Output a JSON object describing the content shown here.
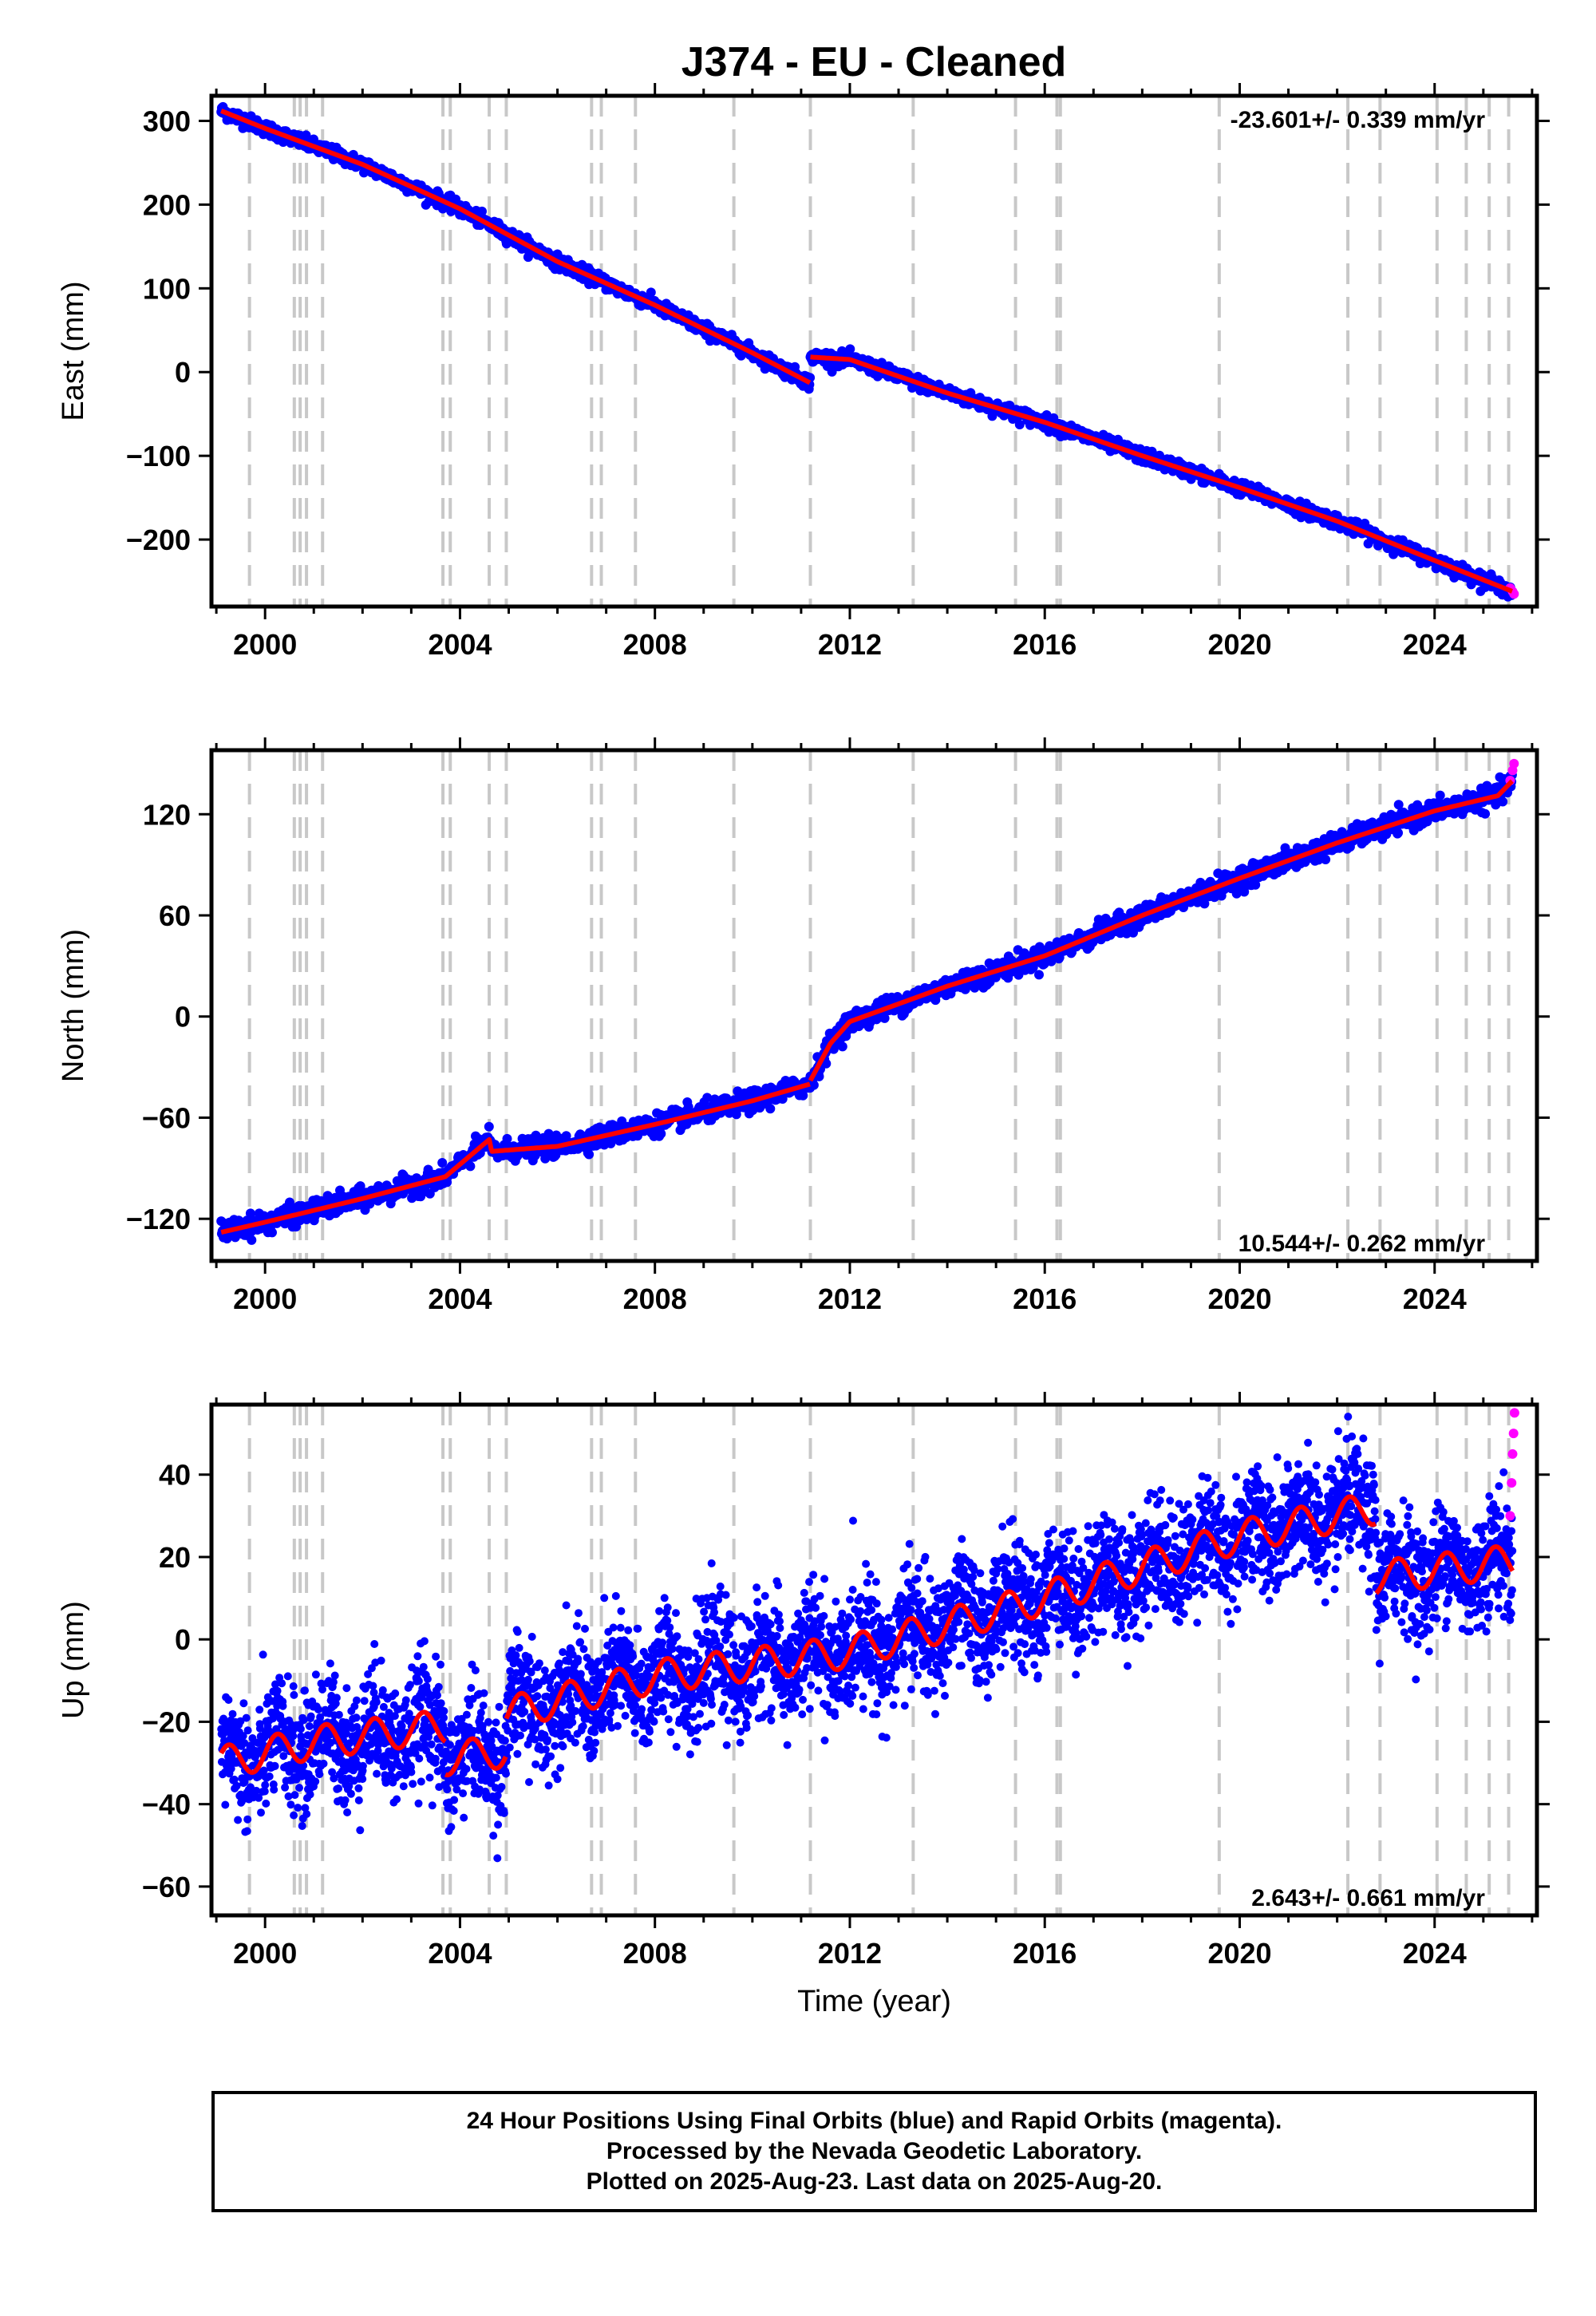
{
  "title": "J374  - EU - Cleaned",
  "chart_data": [
    {
      "type": "scatter",
      "component": "east",
      "ylabel": "East (mm)",
      "xlabel": "",
      "rate_label": "-23.601+/- 0.339 mm/yr",
      "xlim": [
        1998.9,
        2026.1
      ],
      "ylim": [
        -280,
        330
      ],
      "xticks": [
        2000,
        2004,
        2008,
        2012,
        2016,
        2020,
        2024
      ],
      "xtick_labels": [
        "2000",
        "2004",
        "2008",
        "2012",
        "2016",
        "2020",
        "2024"
      ],
      "yticks": [
        -200,
        -100,
        0,
        100,
        200,
        300
      ],
      "ytick_labels": [
        "−200",
        "−100",
        "0",
        "100",
        "200",
        "300"
      ],
      "model_segments": [
        {
          "x": [
            1999.1,
            2000.0,
            2002.0,
            2004.0,
            2006.0,
            2008.0,
            2010.0,
            2011.19
          ],
          "y": [
            312,
            291,
            248,
            195,
            132,
            80,
            23,
            -13
          ]
        },
        {
          "x": [
            2011.19,
            2012.0,
            2014.0,
            2016.0,
            2018.0,
            2020.0,
            2022.0,
            2024.0,
            2025.6
          ],
          "y": [
            18,
            15,
            -25,
            -60,
            -100,
            -138,
            -178,
            -225,
            -262
          ]
        }
      ],
      "scatter_noise_mm": 4,
      "rapid_points": {
        "x": [
          2025.55,
          2025.6,
          2025.63
        ],
        "y": [
          -258,
          -262,
          -265
        ]
      }
    },
    {
      "type": "scatter",
      "component": "north",
      "ylabel": "North (mm)",
      "xlabel": "",
      "rate_label": "10.544+/- 0.262 mm/yr",
      "xlim": [
        1998.9,
        2026.1
      ],
      "ylim": [
        -145,
        158
      ],
      "xticks": [
        2000,
        2004,
        2008,
        2012,
        2016,
        2020,
        2024
      ],
      "xtick_labels": [
        "2000",
        "2004",
        "2008",
        "2012",
        "2016",
        "2020",
        "2024"
      ],
      "yticks": [
        -120,
        -60,
        0,
        60,
        120
      ],
      "ytick_labels": [
        "−120",
        "−60",
        "0",
        "60",
        "120"
      ],
      "model_segments": [
        {
          "x": [
            1999.1,
            2000.0,
            2002.0,
            2003.7,
            2004.6,
            2004.65,
            2006.0,
            2008.0,
            2010.0,
            2011.19
          ],
          "y": [
            -128,
            -122,
            -108,
            -95,
            -73,
            -80,
            -77,
            -64,
            -50,
            -40
          ]
        },
        {
          "x": [
            2011.19,
            2011.6,
            2012.0,
            2014.0,
            2016.0,
            2018.0,
            2020.0,
            2022.0,
            2024.0,
            2025.3,
            2025.6
          ],
          "y": [
            -38,
            -16,
            -3,
            18,
            36,
            60,
            82,
            103,
            122,
            131,
            140
          ]
        }
      ],
      "scatter_noise_mm": 3,
      "rapid_points": {
        "x": [
          2025.55,
          2025.6,
          2025.63
        ],
        "y": [
          140,
          146,
          150
        ]
      }
    },
    {
      "type": "scatter",
      "component": "up",
      "ylabel": "Up (mm)",
      "xlabel": "Time (year)",
      "rate_label": "2.643+/- 0.661 mm/yr",
      "xlim": [
        1998.9,
        2026.1
      ],
      "ylim": [
        -67,
        57
      ],
      "xticks": [
        2000,
        2004,
        2008,
        2012,
        2016,
        2020,
        2024
      ],
      "xtick_labels": [
        "2000",
        "2004",
        "2008",
        "2012",
        "2016",
        "2020",
        "2024"
      ],
      "yticks": [
        -60,
        -40,
        -20,
        0,
        20,
        40
      ],
      "ytick_labels": [
        "−60",
        "−40",
        "−20",
        "0",
        "20",
        "40"
      ],
      "model_segments": [
        {
          "x": [
            1999.1,
            2001.0,
            2003.7
          ],
          "y": [
            -30,
            -25,
            -21
          ]
        },
        {
          "x": [
            2003.7,
            2004.95
          ],
          "y": [
            -29,
            -27
          ]
        },
        {
          "x": [
            2004.95,
            2008.0,
            2012.0,
            2016.0,
            2020.0,
            2022.8
          ],
          "y": [
            -18,
            -9,
            -3,
            10,
            25,
            32
          ]
        },
        {
          "x": [
            2022.8,
            2025.6
          ],
          "y": [
            15,
            19
          ]
        }
      ],
      "seasonal_amplitude_mm": 4,
      "scatter_noise_mm": 7,
      "rapid_points": {
        "x": [
          2025.55,
          2025.58,
          2025.6,
          2025.62,
          2025.64
        ],
        "y": [
          30,
          38,
          45,
          50,
          55
        ]
      }
    }
  ],
  "event_lines_years": [
    1999.68,
    2000.6,
    2000.72,
    2000.85,
    2001.18,
    2003.65,
    2003.8,
    2004.6,
    2004.95,
    2006.7,
    2006.9,
    2007.6,
    2009.62,
    2011.19,
    2013.3,
    2015.4,
    2016.25,
    2016.32,
    2019.58,
    2022.22,
    2022.88,
    2024.05,
    2024.65,
    2025.12,
    2025.52
  ],
  "colors": {
    "final_orbits": "#0000ff",
    "rapid_orbits": "#ff00ff",
    "model": "#ff0000",
    "event_lines": "#c8c8c8"
  },
  "caption": {
    "line1": "24 Hour Positions Using Final Orbits (blue) and Rapid Orbits (magenta).",
    "line2": "Processed by the Nevada Geodetic Laboratory.",
    "line3": "Plotted on 2025-Aug-23. Last data on 2025-Aug-20."
  }
}
